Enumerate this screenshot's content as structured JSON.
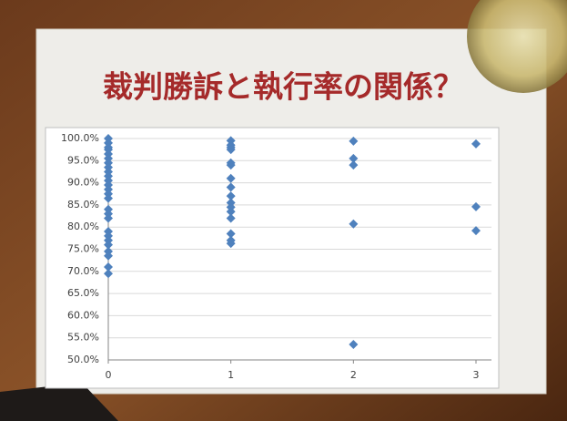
{
  "chart_data": {
    "type": "scatter",
    "title": "裁判勝訴と執行率の関係？",
    "series": [
      {
        "color": "#4f81bd",
        "x": [
          0,
          0,
          0,
          0,
          0,
          0,
          0,
          0,
          0,
          0,
          0,
          0,
          0,
          0,
          0,
          0,
          0,
          0,
          0,
          0,
          0,
          0,
          0,
          0,
          0,
          0,
          1,
          1,
          1,
          1,
          1,
          1,
          1,
          1,
          1,
          1,
          1,
          1,
          1,
          1,
          1,
          1,
          2,
          2,
          2,
          2,
          2,
          3,
          3,
          3
        ],
        "values": [
          100,
          99,
          98,
          97.5,
          96.5,
          95.5,
          94.5,
          93.5,
          92.5,
          91.5,
          90.5,
          89.5,
          88.5,
          87.5,
          86.5,
          84,
          83,
          82,
          79,
          78,
          77,
          76,
          74.5,
          73.5,
          71,
          69.5,
          99.5,
          98.5,
          98,
          97.5,
          94.5,
          94,
          91,
          89,
          87,
          85.5,
          84.5,
          83.5,
          82,
          78.5,
          77,
          76.3,
          99.4,
          95.5,
          94,
          80.7,
          53.5,
          98.8,
          84.6,
          79.2
        ]
      }
    ],
    "xlim": [
      0,
      3
    ],
    "xticks": [
      0,
      1,
      2,
      3
    ],
    "ylim": [
      50,
      100
    ],
    "yticks": [
      {
        "value": 50,
        "label": "50.0%"
      },
      {
        "value": 55,
        "label": "55.0%"
      },
      {
        "value": 60,
        "label": "60.0%"
      },
      {
        "value": 65,
        "label": "65.0%"
      },
      {
        "value": 70,
        "label": "70.0%"
      },
      {
        "value": 75,
        "label": "75.0%"
      },
      {
        "value": 80,
        "label": "80.0%"
      },
      {
        "value": 85,
        "label": "85.0%"
      },
      {
        "value": 90,
        "label": "90.0%"
      },
      {
        "value": 95,
        "label": "95.0%"
      },
      {
        "value": 100,
        "label": "100.0%"
      }
    ],
    "grid": true
  }
}
